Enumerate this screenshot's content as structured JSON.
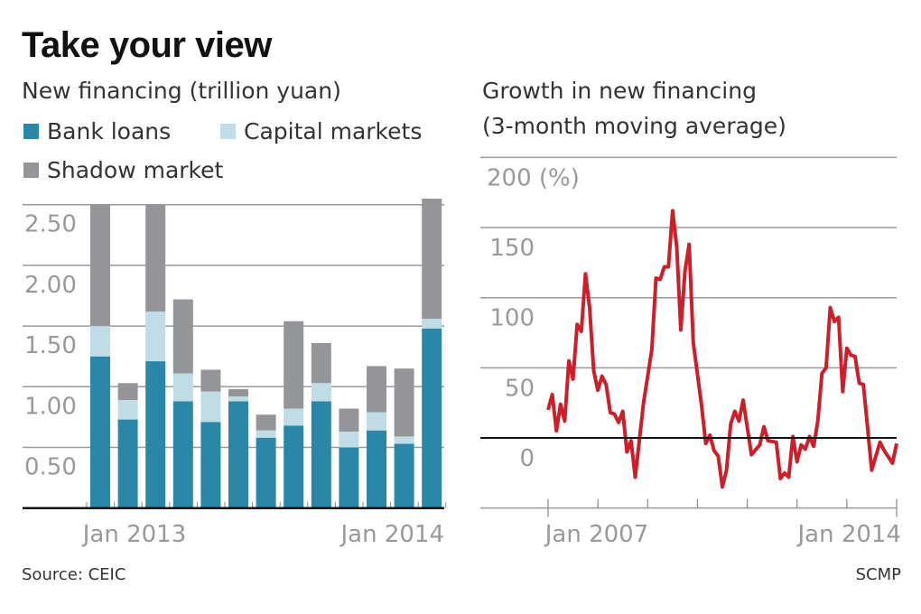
{
  "title": "Take your view",
  "source": "Source: CEIC",
  "credit": "SCMP",
  "colors": {
    "bank": "#2a87a8",
    "capital": "#c0dce6",
    "shadow": "#939598",
    "line": "#cc1f2a"
  },
  "chart_data": [
    {
      "type": "bar",
      "stacked": true,
      "title": "New financing (trillion yuan)",
      "categories": [
        "Jan 2013",
        "Feb 2013",
        "Mar 2013",
        "Apr 2013",
        "May 2013",
        "Jun 2013",
        "Jul 2013",
        "Aug 2013",
        "Sep 2013",
        "Oct 2013",
        "Nov 2013",
        "Dec 2013",
        "Jan 2014"
      ],
      "x_tick_labels": [
        "Jan 2013",
        "Jan 2014"
      ],
      "series": [
        {
          "name": "Bank loans",
          "values": [
            1.25,
            0.73,
            1.21,
            0.88,
            0.71,
            0.88,
            0.58,
            0.68,
            0.88,
            0.5,
            0.64,
            0.53,
            1.48
          ]
        },
        {
          "name": "Capital markets",
          "values": [
            0.25,
            0.16,
            0.41,
            0.23,
            0.25,
            0.04,
            0.06,
            0.14,
            0.15,
            0.13,
            0.15,
            0.06,
            0.08
          ]
        },
        {
          "name": "Shadow market",
          "values": [
            1.0,
            0.14,
            0.88,
            0.61,
            0.18,
            0.06,
            0.13,
            0.72,
            0.33,
            0.19,
            0.38,
            0.56,
            0.99
          ]
        }
      ],
      "y_ticks": [
        "0.50",
        "1.00",
        "1.50",
        "2.00",
        "2.50"
      ],
      "ylim": [
        0,
        2.55
      ],
      "grid": true,
      "legend": "top"
    },
    {
      "type": "line",
      "title": "Growth in new financing",
      "subtitle": "(3-month moving average)",
      "y_ticks": [
        "0",
        "50",
        "100",
        "150",
        "200 (%)"
      ],
      "x_tick_labels": [
        "Jan 2007",
        "Jan 2014"
      ],
      "ylim": [
        -50,
        200
      ],
      "xlim": [
        "2007-01",
        "2014-01"
      ],
      "grid": true,
      "x": [
        "2007-01",
        "2007-02",
        "2007-03",
        "2007-04",
        "2007-05",
        "2007-06",
        "2007-07",
        "2007-08",
        "2007-09",
        "2007-10",
        "2007-11",
        "2007-12",
        "2008-01",
        "2008-02",
        "2008-03",
        "2008-04",
        "2008-05",
        "2008-06",
        "2008-07",
        "2008-08",
        "2008-09",
        "2008-10",
        "2008-12",
        "2009-02",
        "2009-03",
        "2009-04",
        "2009-05",
        "2009-06",
        "2009-07",
        "2009-08",
        "2009-09",
        "2009-10",
        "2009-11",
        "2009-12",
        "2010-02",
        "2010-03",
        "2010-04",
        "2010-05",
        "2010-06",
        "2010-07",
        "2010-08",
        "2010-09",
        "2010-10",
        "2010-11",
        "2010-12",
        "2011-02",
        "2011-04",
        "2011-05",
        "2011-06",
        "2011-08",
        "2011-09",
        "2011-10",
        "2011-11",
        "2011-12",
        "2012-01",
        "2012-02",
        "2012-03",
        "2012-04",
        "2012-05",
        "2012-06",
        "2012-07",
        "2012-08",
        "2012-09",
        "2012-10",
        "2012-11",
        "2012-12",
        "2013-01",
        "2013-02",
        "2013-03",
        "2013-04",
        "2013-05",
        "2013-07",
        "2013-09",
        "2013-10",
        "2013-12",
        "2014-01"
      ],
      "y": [
        20,
        31,
        5,
        24,
        12,
        55,
        42,
        81,
        76,
        117,
        93,
        48,
        34,
        44,
        38,
        18,
        17,
        11,
        19,
        -10,
        -2,
        -28,
        25,
        63,
        114,
        113,
        122,
        122,
        162,
        136,
        77,
        119,
        138,
        68,
        23,
        -4,
        2,
        -9,
        -13,
        -35,
        -23,
        10,
        19,
        12,
        27,
        -12,
        -5,
        8,
        -2,
        -3,
        -29,
        -25,
        -28,
        1,
        -17,
        -5,
        -8,
        1,
        -6,
        12,
        46,
        50,
        93,
        83,
        86,
        33,
        64,
        59,
        58,
        39,
        38,
        -23,
        -3,
        -9,
        -18,
        -4
      ]
    }
  ]
}
